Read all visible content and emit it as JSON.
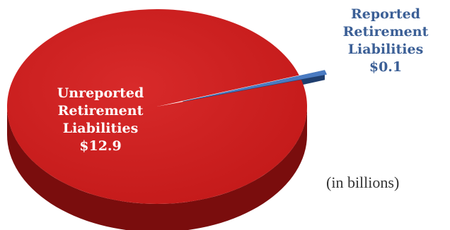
{
  "chart_data": {
    "type": "pie",
    "style": "3d",
    "slices": [
      {
        "label_lines": [
          "Unreported",
          "Retirement",
          "Liabilities",
          "$12.9"
        ],
        "value": 12.9,
        "color": "#c41a1a",
        "side_color": "#7a0d0d",
        "exploded": false
      },
      {
        "label_lines": [
          "Reported",
          "Retirement",
          "Liabilities",
          "$0.1"
        ],
        "value": 0.1,
        "color": "#3b6db5",
        "side_color": "#1f3e6e",
        "exploded": true
      }
    ],
    "units_note": "(in billions)"
  }
}
